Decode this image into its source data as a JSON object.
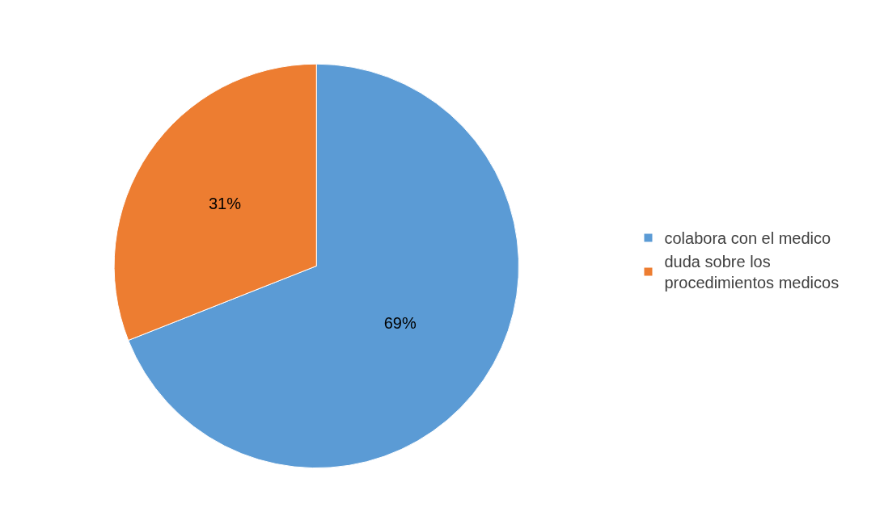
{
  "chart_data": {
    "type": "pie",
    "categories": [
      "colabora con el medico",
      "duda sobre los procedimientos medicos"
    ],
    "values": [
      69,
      31
    ],
    "colors": [
      "#5b9bd5",
      "#ed7d31"
    ],
    "value_labels": [
      "69%",
      "31%"
    ],
    "legend": "right"
  }
}
